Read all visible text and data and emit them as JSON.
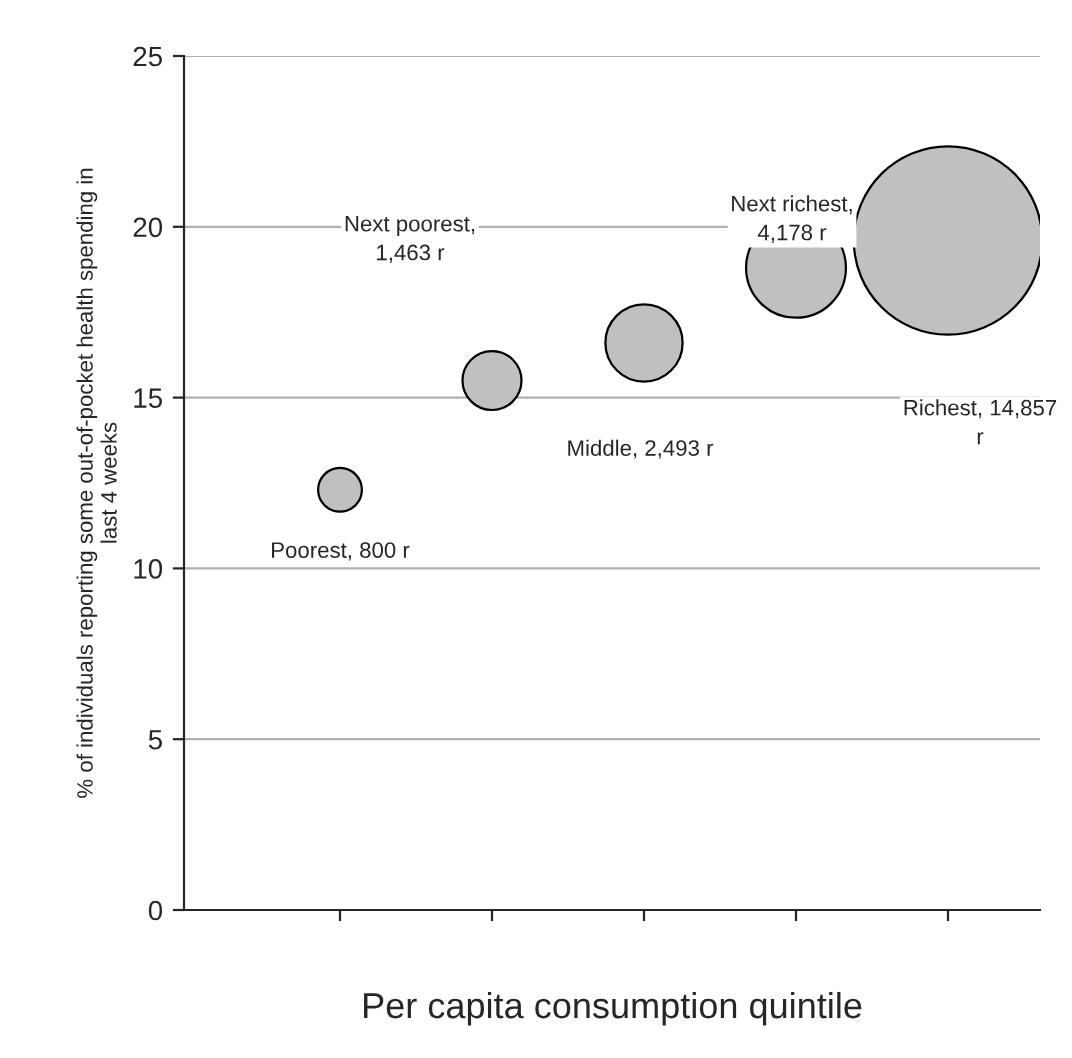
{
  "chart_data": {
    "type": "bubble",
    "xlabel": "Per capita consumption quintile",
    "ylabel": "% of individuals reporting some out-of-pocket health spending in\nlast 4 weeks",
    "categories": [
      null,
      null,
      null,
      null,
      null
    ],
    "values": [
      12.3,
      15.5,
      16.6,
      18.8,
      19.6
    ],
    "sizes": [
      0.054,
      0.098,
      0.168,
      0.281,
      1
    ],
    "annotations": [
      "Poorest, 800 r",
      "Next poorest,\n1,463 r",
      "Middle, 2,493 r",
      "Next richest,\n4,178 r",
      "Richest, 14,857\nr"
    ],
    "color": "#c0c0c0",
    "ylim": [
      0,
      25
    ],
    "yticks": [
      0,
      5,
      10,
      15,
      20,
      25
    ],
    "grid": "y",
    "legend": false
  }
}
